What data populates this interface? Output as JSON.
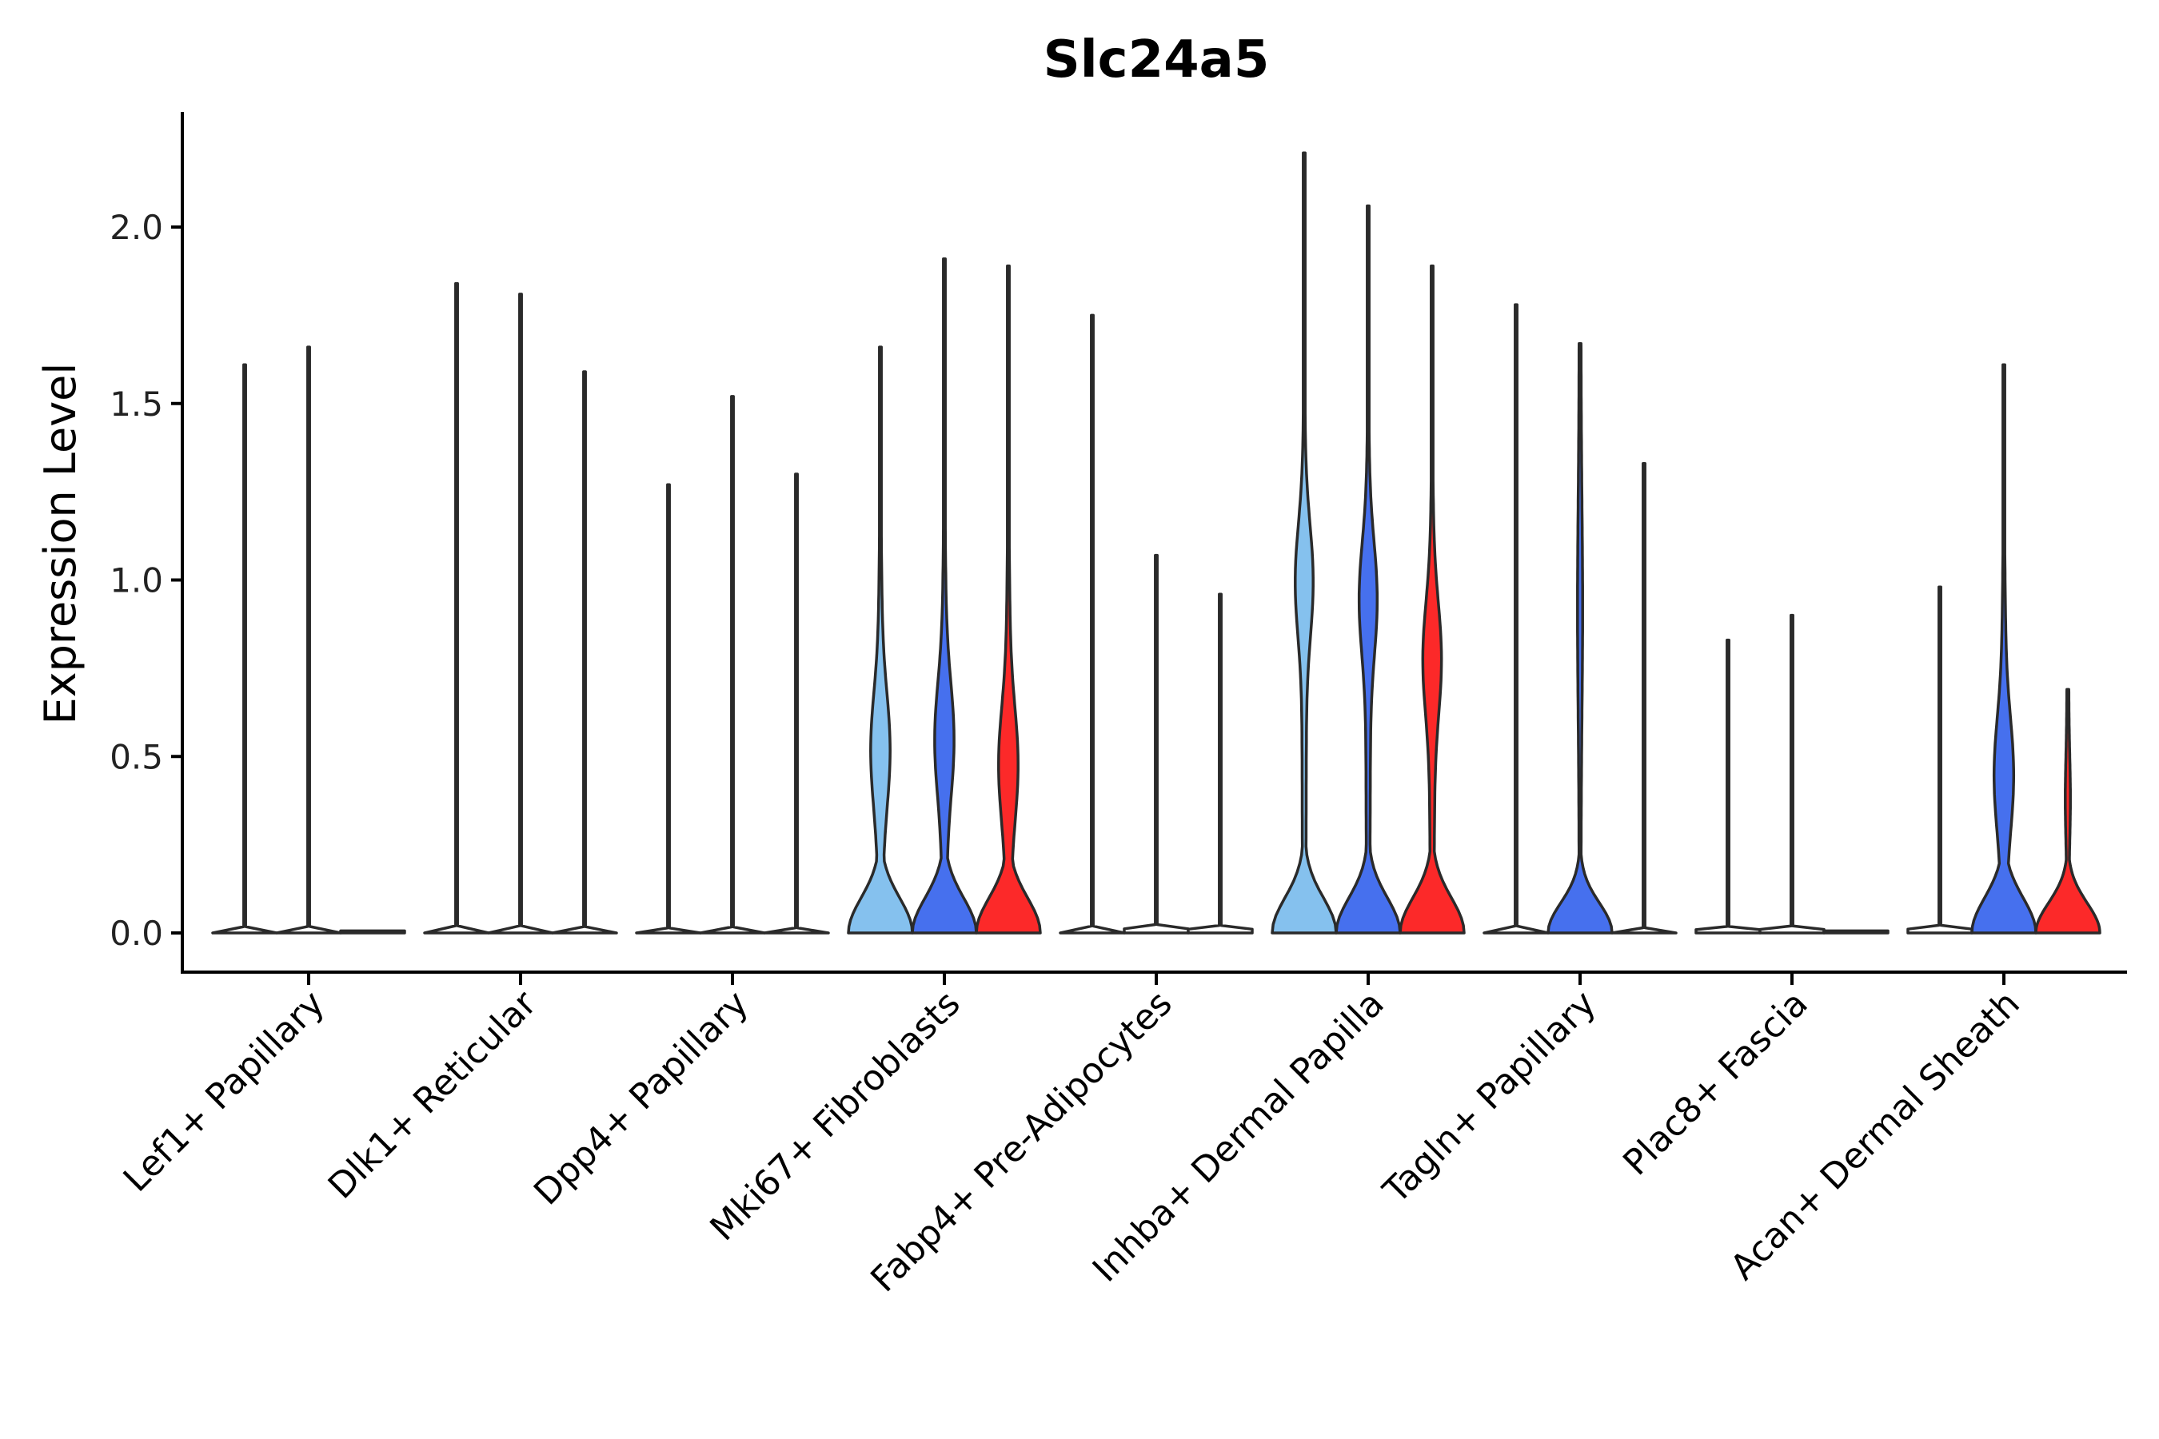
{
  "chart_data": {
    "type": "violin",
    "title": "Slc24a5",
    "xlabel": "",
    "ylabel": "Expression Level",
    "ylim": [
      -0.11,
      2.32
    ],
    "yticks": [
      "0.0",
      "0.5",
      "1.0",
      "1.5",
      "2.0"
    ],
    "grid": false,
    "legend": "none",
    "group_colors": [
      "#85c1ee",
      "#4670ee",
      "#fc2929"
    ],
    "categories": [
      "Lef1+ Papillary",
      "Dlk1+ Reticular",
      "Dpp4+ Papillary",
      "Mki67+ Fibroblasts",
      "Fabp4+ Pre-Adipocytes",
      "Inhba+ Dermal Papilla",
      "Tagln+ Papillary",
      "Plac8+ Fascia",
      "Acan+ Dermal Sheath"
    ],
    "violins": [
      {
        "category": 0,
        "group": 0,
        "max": 1.61,
        "shape": "spike"
      },
      {
        "category": 0,
        "group": 1,
        "max": 1.66,
        "shape": "spike"
      },
      {
        "category": 0,
        "group": 2,
        "max": 0.0,
        "shape": "flat"
      },
      {
        "category": 1,
        "group": 0,
        "max": 1.84,
        "shape": "spike"
      },
      {
        "category": 1,
        "group": 1,
        "max": 1.81,
        "shape": "spike"
      },
      {
        "category": 1,
        "group": 2,
        "max": 1.59,
        "shape": "spike"
      },
      {
        "category": 2,
        "group": 0,
        "max": 1.27,
        "shape": "spike"
      },
      {
        "category": 2,
        "group": 1,
        "max": 1.52,
        "shape": "spike"
      },
      {
        "category": 2,
        "group": 2,
        "max": 1.3,
        "shape": "spike"
      },
      {
        "category": 3,
        "group": 0,
        "max": 1.66,
        "shape": "bimodal",
        "mode": 0.52
      },
      {
        "category": 3,
        "group": 1,
        "max": 1.91,
        "shape": "bimodal",
        "mode": 0.55
      },
      {
        "category": 3,
        "group": 2,
        "max": 1.89,
        "shape": "bimodal",
        "mode": 0.48
      },
      {
        "category": 4,
        "group": 0,
        "max": 1.75,
        "shape": "spike"
      },
      {
        "category": 4,
        "group": 1,
        "max": 1.07,
        "shape": "spike"
      },
      {
        "category": 4,
        "group": 2,
        "max": 0.96,
        "shape": "spike"
      },
      {
        "category": 5,
        "group": 0,
        "max": 2.21,
        "shape": "bimodal",
        "mode": 1.0
      },
      {
        "category": 5,
        "group": 1,
        "max": 2.06,
        "shape": "bimodal",
        "mode": 0.95
      },
      {
        "category": 5,
        "group": 2,
        "max": 1.89,
        "shape": "bimodal",
        "mode": 0.78
      },
      {
        "category": 6,
        "group": 0,
        "max": 1.78,
        "shape": "spike"
      },
      {
        "category": 6,
        "group": 1,
        "max": 1.67,
        "shape": "zero-bulb"
      },
      {
        "category": 6,
        "group": 2,
        "max": 1.33,
        "shape": "spike"
      },
      {
        "category": 7,
        "group": 0,
        "max": 0.83,
        "shape": "spike"
      },
      {
        "category": 7,
        "group": 1,
        "max": 0.9,
        "shape": "spike"
      },
      {
        "category": 7,
        "group": 2,
        "max": 0.0,
        "shape": "flat"
      },
      {
        "category": 8,
        "group": 0,
        "max": 0.98,
        "shape": "spike"
      },
      {
        "category": 8,
        "group": 1,
        "max": 1.61,
        "shape": "bimodal",
        "mode": 0.45
      },
      {
        "category": 8,
        "group": 2,
        "max": 0.69,
        "shape": "zero-bulb"
      }
    ]
  }
}
